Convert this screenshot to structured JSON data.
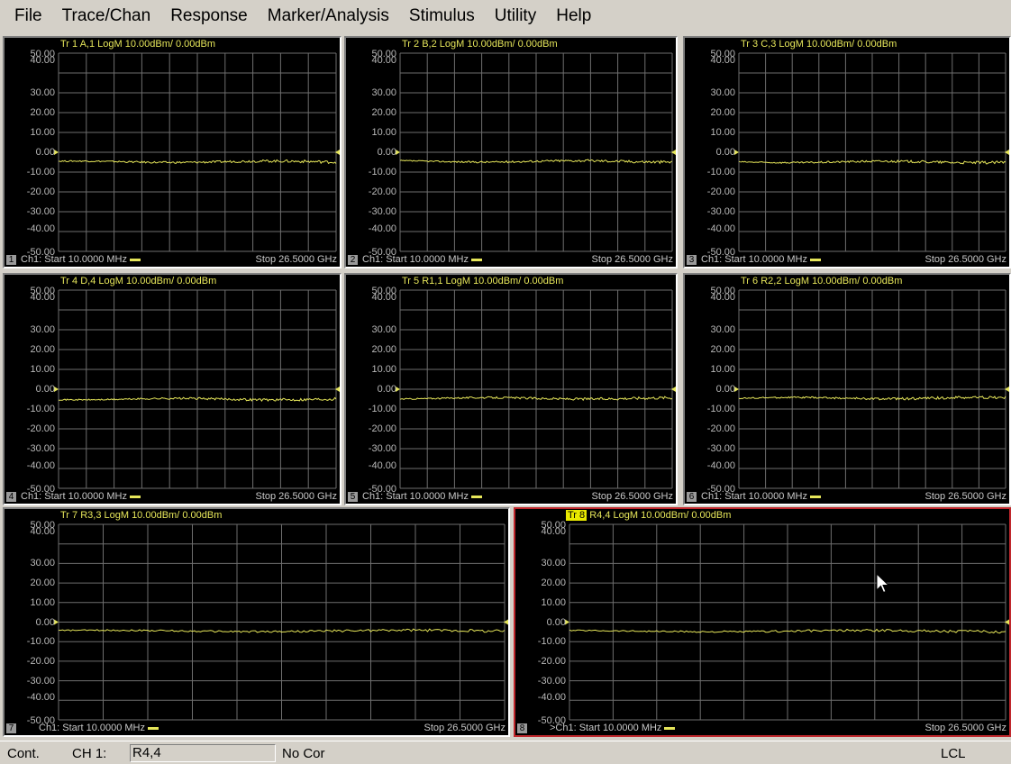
{
  "menu": [
    "File",
    "Trace/Chan",
    "Response",
    "Marker/Analysis",
    "Stimulus",
    "Utility",
    "Help"
  ],
  "y_ticks": [
    "50.00",
    "40.00",
    "30.00",
    "20.00",
    "10.00",
    "0.00",
    "-10.00",
    "-20.00",
    "-30.00",
    "-40.00",
    "-50.00"
  ],
  "y_values": [
    50,
    40,
    30,
    20,
    10,
    0,
    -10,
    -20,
    -30,
    -40,
    -50
  ],
  "trace_color": "#e6e65a",
  "active_border_color": "#c0282d",
  "panels": [
    {
      "id": 1,
      "title": "Tr 1  A,1 LogM 10.00dBm/  0.00dBm",
      "tr_label": "",
      "ch": "1",
      "start": "Ch1: Start  10.0000 MHz",
      "stop": "Stop  26.5000 GHz",
      "level": -4.8,
      "active": false
    },
    {
      "id": 2,
      "title": "Tr 2  B,2 LogM 10.00dBm/  0.00dBm",
      "tr_label": "",
      "ch": "2",
      "start": "Ch1: Start  10.0000 MHz",
      "stop": "Stop  26.5000 GHz",
      "level": -4.6,
      "active": false
    },
    {
      "id": 3,
      "title": "Tr 3  C,3 LogM 10.00dBm/  0.00dBm",
      "tr_label": "",
      "ch": "3",
      "start": "Ch1: Start  10.0000 MHz",
      "stop": "Stop  26.5000 GHz",
      "level": -4.9,
      "active": false
    },
    {
      "id": 4,
      "title": "Tr 4  D,4 LogM 10.00dBm/  0.00dBm",
      "tr_label": "",
      "ch": "4",
      "start": "Ch1: Start  10.0000 MHz",
      "stop": "Stop  26.5000 GHz",
      "level": -5.0,
      "active": false
    },
    {
      "id": 5,
      "title": "Tr 5  R1,1 LogM 10.00dBm/  0.00dBm",
      "tr_label": "",
      "ch": "5",
      "start": "Ch1: Start  10.0000 MHz",
      "stop": "Stop  26.5000 GHz",
      "level": -4.6,
      "active": false
    },
    {
      "id": 6,
      "title": "Tr 6  R2,2 LogM 10.00dBm/  0.00dBm",
      "tr_label": "",
      "ch": "6",
      "start": "Ch1: Start  10.0000 MHz",
      "stop": "Stop  26.5000 GHz",
      "level": -4.5,
      "active": false
    },
    {
      "id": 7,
      "title": "Tr 7  R3,3 LogM 10.00dBm/  0.00dBm",
      "tr_label": "",
      "ch": "7",
      "start": "Ch1: Start  10.0000 MHz",
      "stop": "Stop  26.5000 GHz",
      "level": -4.5,
      "active": false
    },
    {
      "id": 8,
      "title": "R4,4 LogM 10.00dBm/  0.00dBm",
      "tr_label": "Tr 8",
      "ch": "8",
      "start": ">Ch1: Start  10.0000 MHz",
      "stop": "Stop  26.5000 GHz",
      "level": -4.6,
      "active": true
    }
  ],
  "status": {
    "mode": "Cont.",
    "channel": "CH 1:",
    "trace": "R4,4",
    "correction": "No Cor",
    "remote": "LCL"
  }
}
